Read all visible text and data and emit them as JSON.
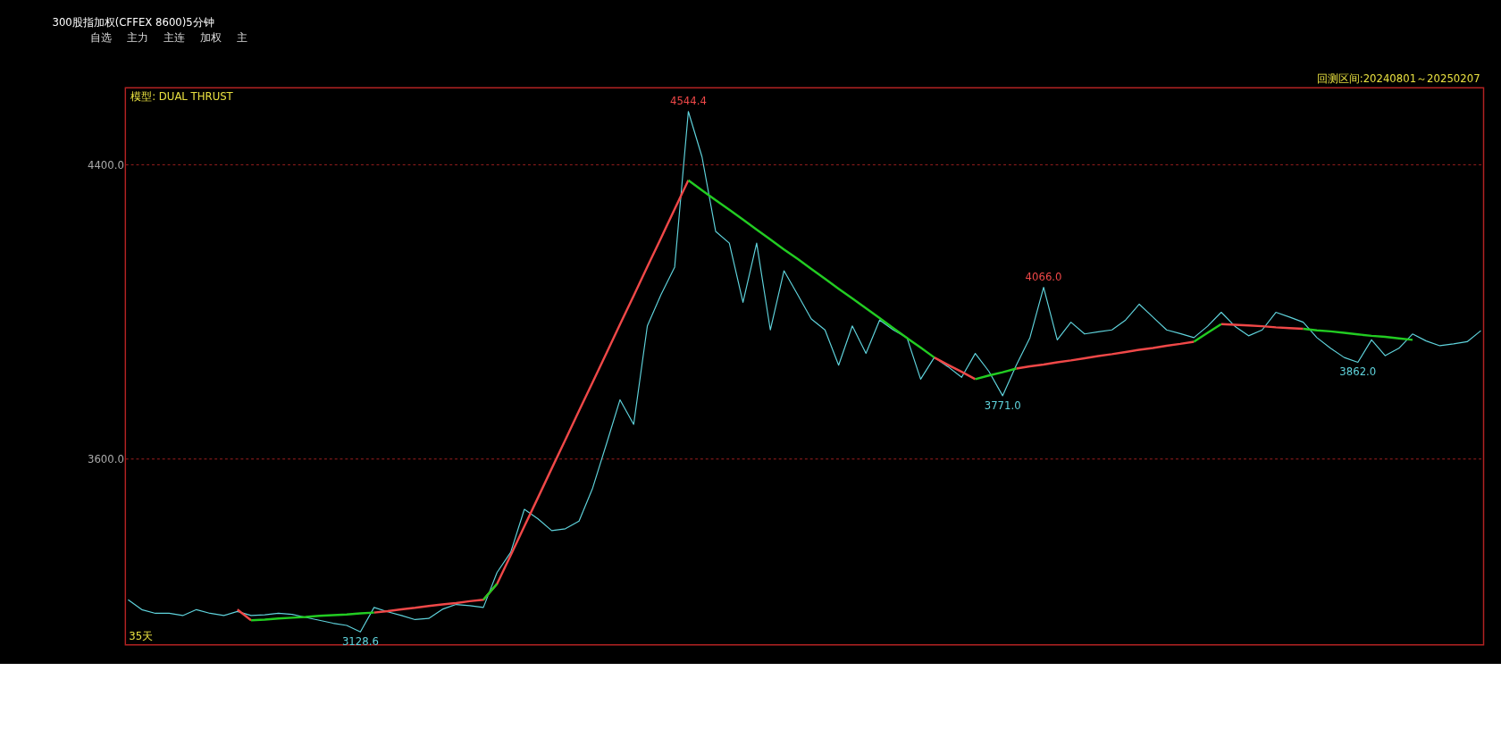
{
  "chart_data": {
    "type": "line",
    "title": "300股指加权(CFFEX 8600)5分钟",
    "subtitle": "回测区间:20240801～20250207",
    "annotations": [
      "自选",
      "主力",
      "主连",
      "加权",
      "主",
      "模型: DUAL THRUST",
      "35天"
    ],
    "categories": [
      null,
      null,
      null,
      null,
      null,
      null,
      null,
      null,
      null,
      null,
      null,
      null,
      null,
      null,
      null,
      null,
      null,
      null,
      null,
      null,
      null,
      null,
      null,
      null,
      null,
      null,
      null,
      null,
      null,
      null,
      null,
      null,
      null,
      null,
      null,
      null,
      null,
      null,
      null,
      null,
      null,
      null,
      null,
      null,
      null,
      null,
      null,
      null,
      null,
      null,
      null,
      null,
      null,
      null,
      null,
      null,
      null,
      null,
      null,
      null,
      null,
      null,
      null,
      null,
      null,
      null,
      null,
      null,
      null,
      null,
      null,
      null,
      null,
      null,
      null,
      null,
      null,
      null,
      null,
      null,
      null,
      null,
      null,
      null,
      null,
      null,
      null,
      null,
      null,
      null,
      null,
      null,
      null,
      null,
      null,
      null,
      null,
      null,
      null,
      null
    ],
    "series": [
      {
        "color": "#5fd3dc",
        "values": [
          3216,
          3189,
          3179,
          3179,
          3173,
          3189,
          3179,
          3173,
          3184,
          3173,
          3175,
          3179,
          3176,
          3168,
          3160,
          3152,
          3146,
          3128.6,
          3195,
          3183,
          3173,
          3162,
          3165,
          3190,
          3203,
          3200,
          3195,
          3290,
          3345,
          3462,
          3436,
          3404,
          3409,
          3430,
          3520,
          3639,
          3760,
          3693,
          3961,
          4046,
          4121,
          4544.4,
          4421,
          4218,
          4186,
          4025,
          4186,
          3950,
          4111,
          4046,
          3980,
          3950,
          3854,
          3961,
          3886,
          3977,
          3950,
          3929,
          3816,
          3875,
          3850,
          3821,
          3886,
          3837,
          3771,
          3854,
          3929,
          4066,
          3923,
          3971,
          3939,
          3945,
          3950,
          3977,
          4020,
          3985,
          3950,
          3940,
          3929,
          3960,
          3998,
          3960,
          3934,
          3950,
          3998,
          3985,
          3971,
          3929,
          3900,
          3875,
          3862,
          3923,
          3880,
          3900,
          3939,
          3920,
          3907,
          3912,
          3918,
          3948
        ],
        "value_labels": [
          null,
          null,
          null,
          null,
          null,
          null,
          null,
          null,
          null,
          null,
          null,
          null,
          null,
          null,
          null,
          null,
          null,
          "3128.6",
          null,
          null,
          null,
          null,
          null,
          null,
          null,
          null,
          null,
          null,
          null,
          null,
          null,
          null,
          null,
          null,
          null,
          null,
          null,
          null,
          null,
          null,
          null,
          "4544.4",
          null,
          null,
          null,
          null,
          null,
          null,
          null,
          null,
          null,
          null,
          null,
          null,
          null,
          null,
          null,
          null,
          null,
          null,
          null,
          null,
          null,
          null,
          "3771.0",
          null,
          null,
          "4066.0",
          null,
          null,
          null,
          null,
          null,
          null,
          null,
          null,
          null,
          null,
          null,
          null,
          null,
          null,
          null,
          null,
          null,
          null,
          null,
          null,
          null,
          null,
          "3862.0",
          null,
          null,
          null,
          null,
          null,
          null,
          null,
          null,
          null
        ]
      },
      {
        "type": "line",
        "color": "#f04848",
        "values": [
          null,
          null,
          null,
          null,
          null,
          null,
          null,
          null,
          3189,
          3160,
          null,
          null,
          null,
          null,
          null,
          null,
          null,
          null,
          3181,
          3185,
          3190,
          3194,
          3199,
          3203,
          3207,
          3212,
          3216,
          3259,
          3337,
          3416,
          3494,
          3573,
          3651,
          3730,
          3808,
          3886,
          3965,
          4043,
          4122,
          4200,
          4279,
          4357,
          null,
          null,
          null,
          null,
          null,
          null,
          null,
          null,
          null,
          null,
          null,
          null,
          null,
          null,
          null,
          null,
          null,
          3875,
          3855,
          3836,
          3816,
          null,
          null,
          3845,
          3851,
          3856,
          3862,
          3867,
          3873,
          3879,
          3884,
          3890,
          3896,
          3901,
          3907,
          3912,
          3918,
          null,
          3966,
          3964,
          3962,
          3960,
          3957,
          3955,
          3953,
          null,
          null,
          null,
          null,
          null,
          null,
          null,
          null,
          null,
          null,
          null,
          null,
          null
        ]
      },
      {
        "type": "line",
        "color": "#22cc22",
        "values": [
          null,
          null,
          null,
          null,
          null,
          null,
          null,
          null,
          null,
          3160,
          3162,
          3165,
          3167,
          3169,
          3172,
          3174,
          3176,
          3179,
          3181,
          null,
          null,
          null,
          null,
          null,
          null,
          null,
          3216,
          3259,
          null,
          null,
          null,
          null,
          null,
          null,
          null,
          null,
          null,
          null,
          null,
          null,
          null,
          4357,
          4330,
          4303,
          4277,
          4250,
          4223,
          4196,
          4169,
          4143,
          4116,
          4089,
          4062,
          4036,
          4009,
          3982,
          3955,
          3928,
          3902,
          3875,
          null,
          null,
          3816,
          3826,
          3835,
          3845,
          null,
          null,
          null,
          null,
          null,
          null,
          null,
          null,
          null,
          null,
          null,
          null,
          3918,
          3942,
          3966,
          null,
          null,
          null,
          null,
          null,
          3953,
          3949,
          3946,
          3942,
          3938,
          3934,
          3931,
          3927,
          3923,
          null,
          null,
          null,
          null,
          null
        ]
      }
    ],
    "ylim": [
      3093,
      4609
    ],
    "yticks": [
      {
        "value": 4400,
        "label": "4400.0"
      },
      {
        "value": 3600,
        "label": "3600.0"
      }
    ],
    "tick_labels": "y",
    "grid": "y"
  }
}
